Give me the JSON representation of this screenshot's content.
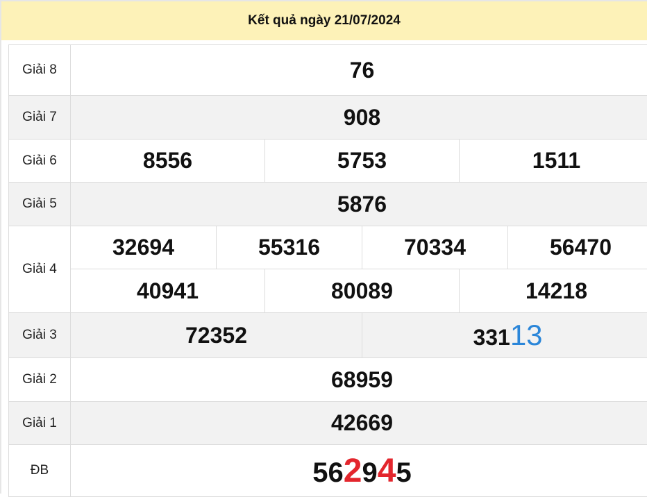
{
  "header": {
    "title": "Kết quả ngày 21/07/2024"
  },
  "prizes": {
    "g8": {
      "label": "Giải 8",
      "numbers": [
        "76"
      ]
    },
    "g7": {
      "label": "Giải 7",
      "numbers": [
        "908"
      ]
    },
    "g6": {
      "label": "Giải 6",
      "numbers": [
        "8556",
        "5753",
        "1511"
      ]
    },
    "g5": {
      "label": "Giải 5",
      "numbers": [
        "5876"
      ]
    },
    "g4": {
      "label": "Giải 4",
      "numbers": [
        "32694",
        "55316",
        "70334",
        "56470",
        "40941",
        "80089",
        "14218"
      ]
    },
    "g3": {
      "label": "Giải 3",
      "numbers": [
        "72352"
      ],
      "highlight": {
        "prefix": "331",
        "suffix": "13"
      }
    },
    "g2": {
      "label": "Giải 2",
      "numbers": [
        "68959"
      ]
    },
    "g1": {
      "label": "Giải 1",
      "numbers": [
        "42669"
      ]
    },
    "db": {
      "label": "ĐB",
      "parts": [
        "56",
        "2",
        "9",
        "4",
        "5"
      ]
    }
  },
  "colors": {
    "special": "#e3262d",
    "highlight": "#2b86d9",
    "header_bg": "#fdf2b8",
    "alt_row": "#f2f2f2"
  }
}
